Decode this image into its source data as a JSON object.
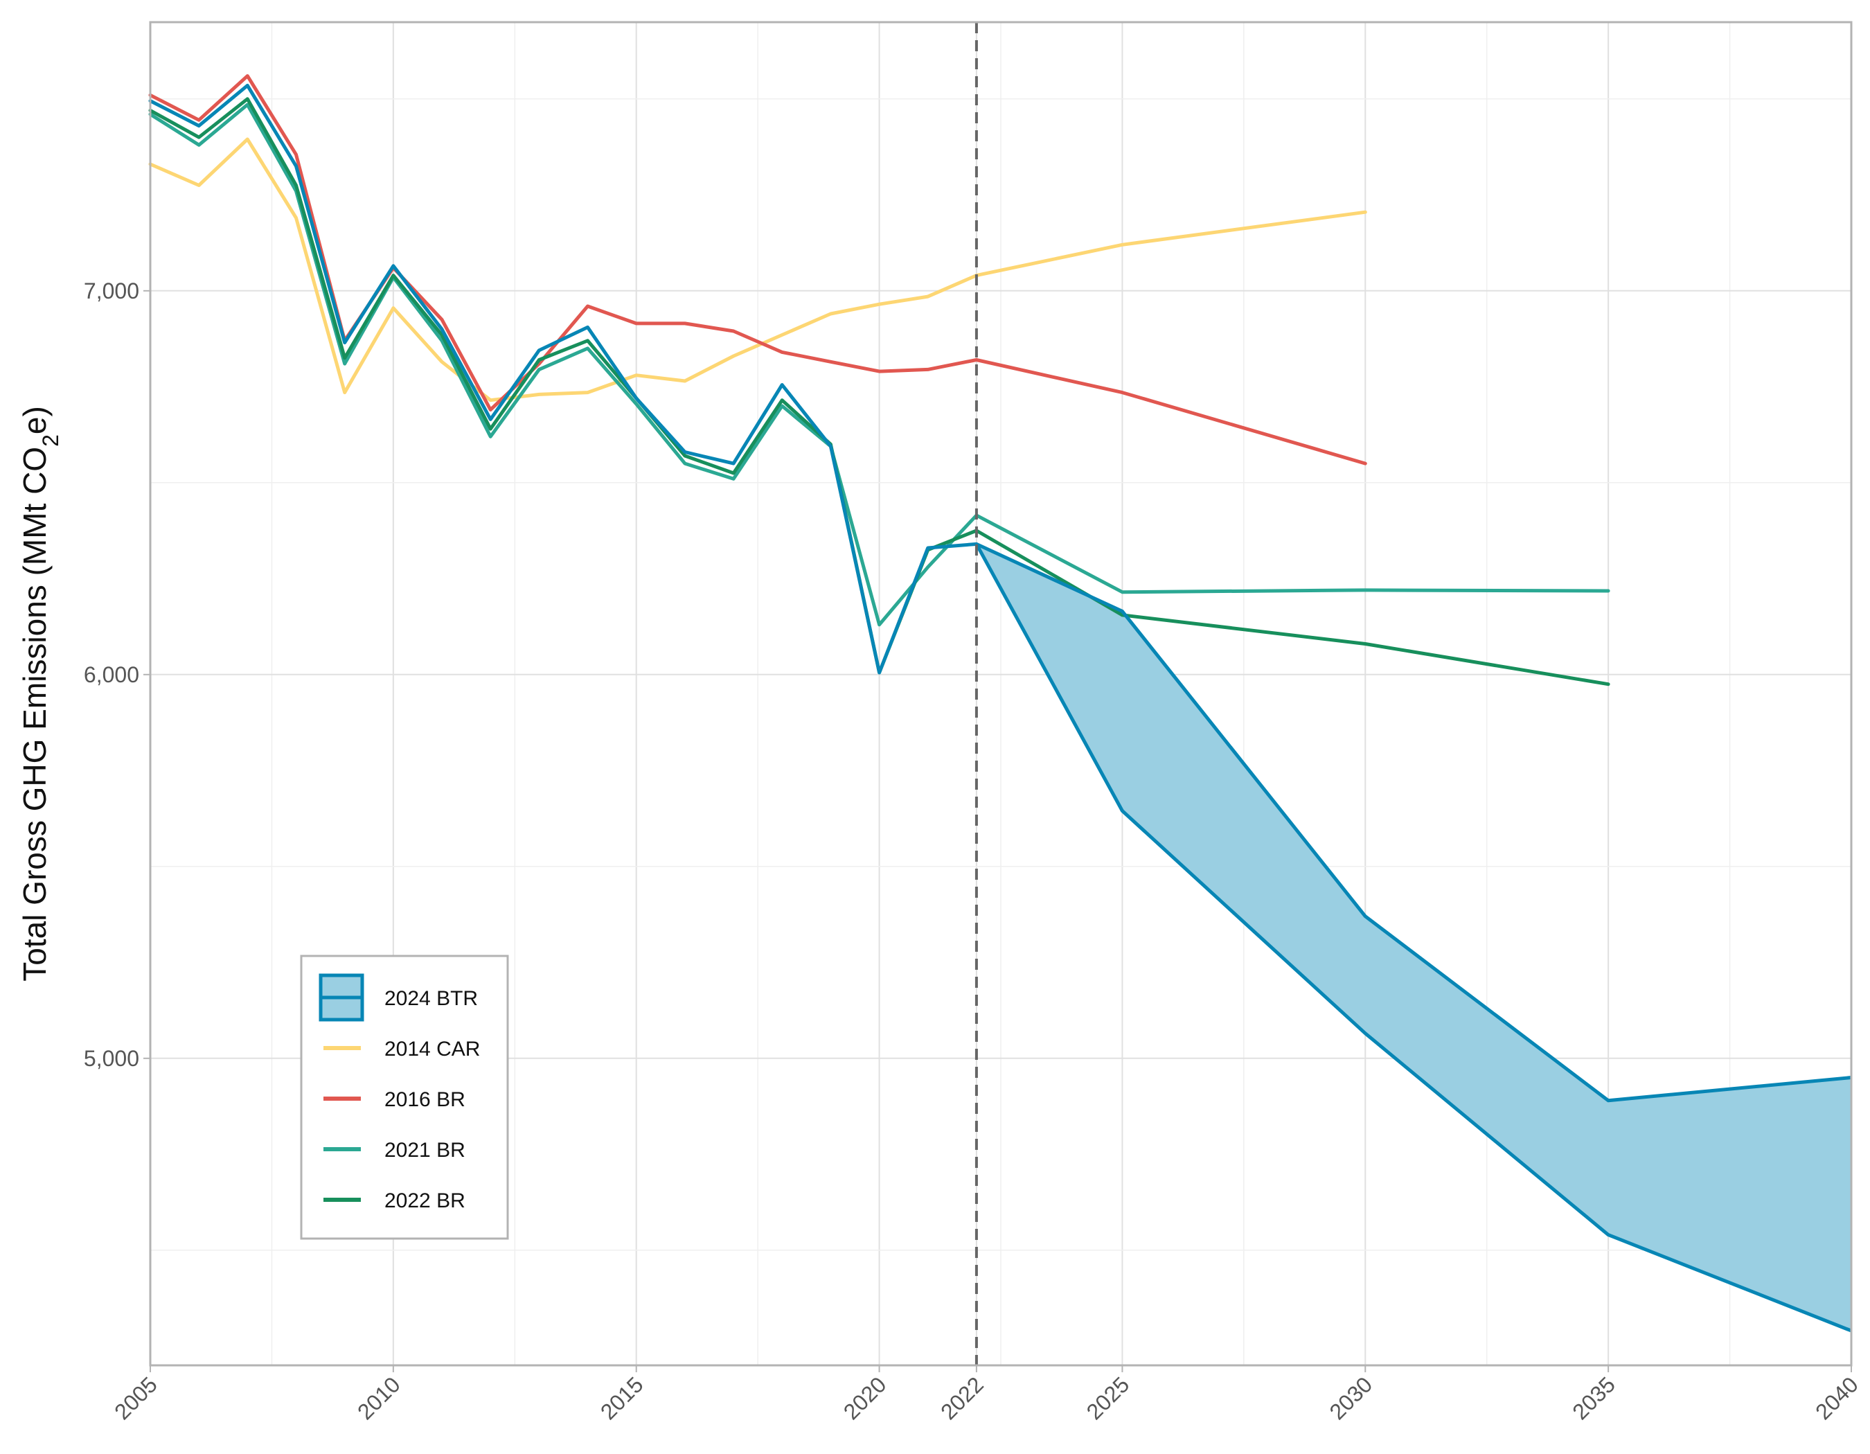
{
  "chart_data": {
    "type": "line",
    "title": "",
    "xlabel": "",
    "ylabel": {
      "prefix": "Total Gross GHG Emissions (MMt CO",
      "subscript": "2",
      "suffix": "e)"
    },
    "xlim": [
      2005,
      2040
    ],
    "ylim": [
      4200,
      7700
    ],
    "x_ticks": [
      2005,
      2010,
      2015,
      2020,
      2022,
      2025,
      2030,
      2035,
      2040
    ],
    "y_ticks": [
      5000,
      6000,
      7000
    ],
    "y_tick_labels": [
      "5,000",
      "6,000",
      "7,000"
    ],
    "reference_line": {
      "x": 2022,
      "style": "dashed",
      "color": "#666666"
    },
    "grid": true,
    "legend_position": "bottom-left",
    "series": [
      {
        "name": "2014 CAR",
        "color": "#FDD673",
        "x": [
          2005,
          2006,
          2007,
          2008,
          2009,
          2010,
          2011,
          2012,
          2013,
          2014,
          2015,
          2016,
          2017,
          2018,
          2019,
          2020,
          2021,
          2022,
          2025,
          2030
        ],
        "y": [
          7330,
          7275,
          7395,
          7190,
          6735,
          6955,
          6815,
          6715,
          6730,
          6735,
          6780,
          6765,
          6830,
          6885,
          6940,
          6965,
          6985,
          7040,
          7120,
          7205
        ]
      },
      {
        "name": "2016 BR",
        "color": "#E15750",
        "x": [
          2005,
          2006,
          2007,
          2008,
          2009,
          2010,
          2011,
          2012,
          2013,
          2014,
          2015,
          2016,
          2017,
          2018,
          2019,
          2020,
          2021,
          2022,
          2025,
          2030
        ],
        "y": [
          7510,
          7445,
          7560,
          7355,
          6870,
          7060,
          6925,
          6690,
          6810,
          6960,
          6915,
          6915,
          6895,
          6840,
          6815,
          6790,
          6795,
          6820,
          6735,
          6550
        ]
      },
      {
        "name": "2021 BR",
        "color": "#2BA893",
        "x": [
          2005,
          2006,
          2007,
          2008,
          2009,
          2010,
          2011,
          2012,
          2013,
          2014,
          2015,
          2016,
          2017,
          2018,
          2019,
          2020,
          2021,
          2022,
          2025,
          2030,
          2035
        ],
        "y": [
          7460,
          7380,
          7485,
          7260,
          6810,
          7035,
          6870,
          6620,
          6795,
          6850,
          6705,
          6550,
          6510,
          6700,
          6595,
          6130,
          6280,
          6415,
          6215,
          6220,
          6218
        ]
      },
      {
        "name": "2022 BR",
        "color": "#178F5C",
        "x": [
          2005,
          2006,
          2007,
          2008,
          2009,
          2010,
          2011,
          2012,
          2013,
          2014,
          2015,
          2016,
          2017,
          2018,
          2019,
          2020,
          2021,
          2022,
          2025,
          2030,
          2035
        ],
        "y": [
          7470,
          7400,
          7500,
          7275,
          6825,
          7040,
          6885,
          6640,
          6820,
          6870,
          6720,
          6570,
          6525,
          6715,
          6600,
          6005,
          6325,
          6375,
          6155,
          6080,
          5975
        ]
      },
      {
        "name": "2024 BTR",
        "color": "#0786B5",
        "fill": "#9ACFE2",
        "x": [
          2005,
          2006,
          2007,
          2008,
          2009,
          2010,
          2011,
          2012,
          2013,
          2014,
          2015,
          2016,
          2017,
          2018,
          2019,
          2020,
          2021,
          2022
        ],
        "y": [
          7495,
          7430,
          7535,
          7325,
          6865,
          7065,
          6900,
          6665,
          6845,
          6905,
          6720,
          6580,
          6550,
          6755,
          6595,
          6005,
          6330,
          6340
        ],
        "projection_x": [
          2022,
          2025,
          2030,
          2035,
          2040
        ],
        "projection_upper": [
          6340,
          6165,
          5370,
          4890,
          4950
        ],
        "projection_lower": [
          6340,
          5645,
          5065,
          4540,
          4290
        ]
      }
    ],
    "legend": [
      {
        "label": "2024 BTR",
        "color": "#0786B5",
        "swatch": "band"
      },
      {
        "label": "2014 CAR",
        "color": "#FDD673",
        "swatch": "line"
      },
      {
        "label": "2016 BR",
        "color": "#E15750",
        "swatch": "line"
      },
      {
        "label": "2021 BR",
        "color": "#2BA893",
        "swatch": "line"
      },
      {
        "label": "2022 BR",
        "color": "#178F5C",
        "swatch": "line"
      }
    ]
  }
}
